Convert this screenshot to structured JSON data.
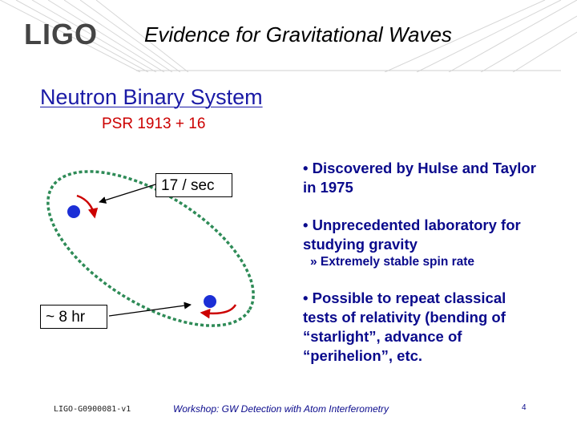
{
  "header": {
    "logo_text": "LIGO",
    "title": "Evidence for Gravitational Waves"
  },
  "main": {
    "section_heading": "Neutron Binary System",
    "pulsar_name": "PSR 1913 + 16",
    "rate_label": "17 / sec",
    "period_label": "~ 8 hr",
    "bullets": [
      "• Discovered by Hulse and Taylor in 1975",
      "• Unprecedented laboratory for studying gravity",
      "• Possible to repeat classical tests of relativity (bending of “starlight”, advance of “perihelion”, etc."
    ],
    "sub_bullet": "» Extremely stable spin rate"
  },
  "footer": {
    "doc_id": "LIGO-G0900081-v1",
    "workshop": "Workshop: GW Detection with Atom Interferometry",
    "page_number": "4"
  },
  "colors": {
    "heading": "#1a1aa6",
    "accent_red": "#cc0000",
    "bullet_text": "#0a0a8c",
    "orbit": "#2e8b57",
    "star": "#1c2fd6"
  }
}
